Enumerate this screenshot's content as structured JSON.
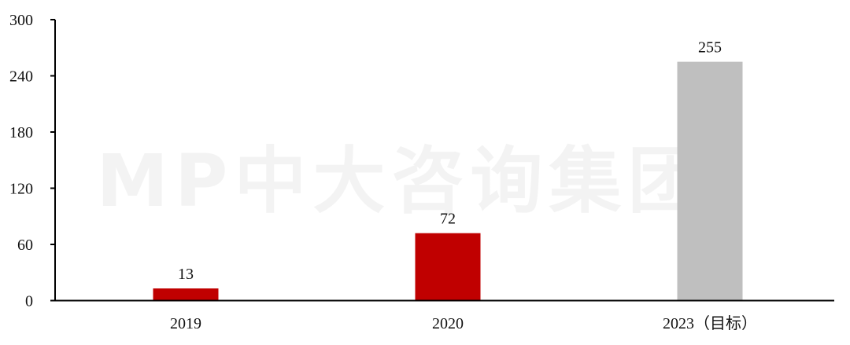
{
  "watermark": "MP中大咨询集团",
  "chart_data": {
    "type": "bar",
    "categories": [
      "2019",
      "2020",
      "2023（目标）"
    ],
    "values": [
      13,
      72,
      255
    ],
    "data_labels": [
      "13",
      "72",
      "255"
    ],
    "colors": [
      "#c00000",
      "#c00000",
      "#bfbfbf"
    ],
    "title": "",
    "xlabel": "",
    "ylabel": "",
    "ylim": [
      0,
      300
    ],
    "yticks": [
      0,
      60,
      120,
      180,
      240,
      300
    ],
    "grid": false,
    "legend": "none"
  }
}
